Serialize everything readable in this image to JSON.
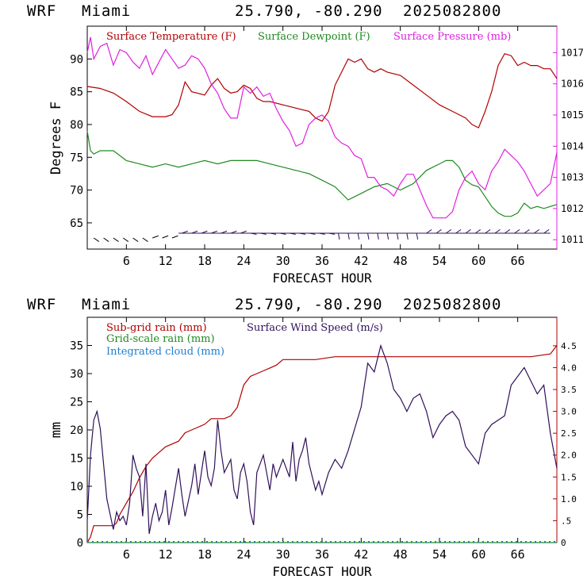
{
  "panel_top": {
    "header": {
      "model": "WRF",
      "location": "Miami",
      "coords": "25.790, -80.290",
      "run": "2025082800"
    },
    "xlabel": "FORECAST HOUR",
    "ylabel": "Degrees F",
    "x_ticks": [
      "6",
      "12",
      "18",
      "24",
      "30",
      "36",
      "42",
      "48",
      "54",
      "60",
      "66"
    ],
    "y_ticks": [
      "65",
      "70",
      "75",
      "80",
      "85",
      "90"
    ],
    "y2_ticks": [
      "1011",
      "1012",
      "1013",
      "1014",
      "1015",
      "1016",
      "1017"
    ],
    "legend": [
      {
        "label": "Surface Temperature (F)",
        "color": "#b00000"
      },
      {
        "label": "Surface Dewpoint (F)",
        "color": "#1f8a1f"
      },
      {
        "label": "Surface Pressure (mb)",
        "color": "#e020e0"
      }
    ]
  },
  "panel_bottom": {
    "header": {
      "model": "WRF",
      "location": "Miami",
      "coords": "25.790, -80.290",
      "run": "2025082800"
    },
    "xlabel": "FORECAST HOUR",
    "ylabel": "mm",
    "x_ticks": [
      "6",
      "12",
      "18",
      "24",
      "30",
      "36",
      "42",
      "48",
      "54",
      "60",
      "66"
    ],
    "y_ticks": [
      "0",
      "5",
      "10",
      "15",
      "20",
      "25",
      "30",
      "35"
    ],
    "y2_ticks": [
      "0",
      ".5",
      "1.0",
      "1.5",
      "2.0",
      "2.5",
      "3.0",
      "3.5",
      "4.0",
      "4.5"
    ],
    "legend": [
      {
        "label": "Sub-grid rain (mm)",
        "color": "#b00000"
      },
      {
        "label": "Grid-scale rain (mm)",
        "color": "#1f8a1f"
      },
      {
        "label": "Integrated cloud (mm)",
        "color": "#1e7fd0"
      },
      {
        "label": "Surface Wind Speed (m/s)",
        "color": "#30105a"
      }
    ]
  },
  "chart_data": [
    {
      "type": "line",
      "xlim": [
        0,
        72
      ],
      "ylim": [
        61,
        95
      ],
      "y2lim": [
        1010.7,
        1017.85
      ],
      "series": [
        {
          "name": "Surface Temperature (F)",
          "axis": "left",
          "color": "#b00000",
          "x": [
            0,
            2,
            4,
            6,
            8,
            10,
            12,
            13,
            14,
            15,
            16,
            18,
            19,
            20,
            21,
            22,
            23,
            24,
            25,
            26,
            27,
            28,
            30,
            32,
            34,
            35,
            36,
            37,
            38,
            40,
            41,
            42,
            43,
            44,
            45,
            46,
            48,
            50,
            52,
            54,
            56,
            58,
            59,
            60,
            61,
            62,
            63,
            64,
            65,
            66,
            67,
            68,
            69,
            70,
            71,
            72
          ],
          "y": [
            85.8,
            85.5,
            84.8,
            83.5,
            82,
            81.2,
            81.2,
            81.5,
            83,
            86.5,
            85,
            84.5,
            86,
            87,
            85.5,
            84.8,
            85,
            86,
            85.5,
            84,
            83.5,
            83.5,
            83,
            82.5,
            82,
            81,
            80.5,
            82,
            86,
            90,
            89.5,
            90,
            88.5,
            88,
            88.5,
            88,
            87.5,
            86,
            84.5,
            83,
            82,
            81,
            80,
            79.5,
            82,
            85,
            89,
            90.8,
            90.5,
            89,
            89.5,
            89,
            89,
            88.5,
            88.5,
            87
          ]
        },
        {
          "name": "Surface Dewpoint (F)",
          "axis": "left",
          "color": "#1f8a1f",
          "x": [
            0,
            0.5,
            1,
            2,
            4,
            6,
            8,
            10,
            12,
            14,
            16,
            18,
            20,
            22,
            24,
            26,
            28,
            30,
            32,
            34,
            36,
            38,
            40,
            42,
            44,
            46,
            48,
            50,
            52,
            54,
            55,
            56,
            57,
            58,
            59,
            60,
            61,
            62,
            63,
            64,
            65,
            66,
            67,
            68,
            69,
            70,
            71,
            72
          ],
          "y": [
            79,
            76,
            75.5,
            76,
            76,
            74.5,
            74,
            73.5,
            74,
            73.5,
            74,
            74.5,
            74,
            74.5,
            74.5,
            74.5,
            74,
            73.5,
            73,
            72.5,
            71.5,
            70.5,
            68.5,
            69.5,
            70.5,
            71,
            70,
            71,
            73,
            74,
            74.5,
            74.5,
            73.5,
            71.5,
            70.8,
            70.5,
            69,
            67.5,
            66.5,
            66,
            66,
            66.5,
            68,
            67.2,
            67.5,
            67.2,
            67.5,
            67.8
          ]
        },
        {
          "name": "Surface Pressure (mb)",
          "axis": "right",
          "color": "#e020e0",
          "x": [
            0,
            0.5,
            1,
            2,
            3,
            4,
            5,
            6,
            7,
            8,
            9,
            10,
            11,
            12,
            13,
            14,
            15,
            16,
            17,
            18,
            19,
            20,
            21,
            22,
            23,
            24,
            25,
            26,
            27,
            28,
            29,
            30,
            31,
            32,
            33,
            34,
            35,
            36,
            37,
            38,
            39,
            40,
            41,
            42,
            43,
            44,
            45,
            46,
            47,
            48,
            49,
            50,
            51,
            52,
            53,
            54,
            55,
            56,
            57,
            58,
            59,
            60,
            61,
            62,
            63,
            64,
            65,
            66,
            67,
            68,
            69,
            70,
            71,
            72
          ],
          "y": [
            1017,
            1017.5,
            1016.8,
            1017.2,
            1017.3,
            1016.6,
            1017.1,
            1017,
            1016.7,
            1016.5,
            1016.9,
            1016.3,
            1016.7,
            1017.1,
            1016.8,
            1016.5,
            1016.6,
            1016.9,
            1016.8,
            1016.5,
            1016,
            1015.7,
            1015.2,
            1014.9,
            1014.9,
            1015.9,
            1015.7,
            1015.9,
            1015.6,
            1015.7,
            1015.2,
            1014.8,
            1014.5,
            1014,
            1014.1,
            1014.7,
            1014.9,
            1015,
            1014.8,
            1014.3,
            1014.1,
            1014,
            1013.7,
            1013.6,
            1013,
            1013,
            1012.7,
            1012.6,
            1012.4,
            1012.8,
            1013.1,
            1013.1,
            1012.6,
            1012.1,
            1011.7,
            1011.7,
            1011.7,
            1011.9,
            1012.6,
            1013,
            1013.2,
            1012.8,
            1012.6,
            1013.2,
            1013.5,
            1013.9,
            1013.7,
            1013.5,
            1013.2,
            1012.8,
            1012.4,
            1012.6,
            1012.8,
            1013.8
          ]
        }
      ],
      "wind_barbs": "row of wind barbs along the bottom of the panel"
    },
    {
      "type": "line",
      "xlim": [
        0,
        72
      ],
      "ylim": [
        0,
        40
      ],
      "y2lim": [
        0,
        5.15
      ],
      "series": [
        {
          "name": "Sub-grid rain (mm)",
          "axis": "left",
          "color": "#b00000",
          "x": [
            0,
            0.5,
            1,
            4,
            4.5,
            5,
            6,
            7,
            8,
            9,
            10,
            11,
            12,
            14,
            15,
            16,
            17,
            18,
            19,
            20,
            21,
            22,
            23,
            24,
            25,
            26,
            27,
            28,
            29,
            30,
            31,
            32,
            35,
            38,
            40,
            44,
            48,
            52,
            56,
            60,
            64,
            68,
            71,
            72
          ],
          "y": [
            0,
            1,
            3,
            3,
            3.5,
            5,
            7,
            9,
            11.5,
            13.5,
            15,
            16,
            17,
            18,
            19.5,
            20,
            20.5,
            21,
            22,
            22,
            22,
            22.5,
            24,
            28,
            29.5,
            30,
            30.5,
            31,
            31.5,
            32.5,
            32.5,
            32.5,
            32.5,
            33,
            33,
            33,
            33,
            33,
            33,
            33,
            33,
            33,
            33.5,
            35
          ]
        },
        {
          "name": "Grid-scale rain (mm)",
          "axis": "left",
          "color": "#1f8a1f",
          "x": [
            0,
            72
          ],
          "y": [
            0,
            0
          ]
        },
        {
          "name": "Integrated cloud (mm)",
          "axis": "left",
          "color": "#1e7fd0",
          "x": [
            0,
            72
          ],
          "y": [
            0,
            0
          ]
        },
        {
          "name": "Surface Wind Speed (m/s)",
          "axis": "right",
          "color": "#30105a",
          "x": [
            0,
            0.5,
            1,
            1.5,
            2,
            3,
            4,
            4.5,
            5,
            5.5,
            6,
            6.5,
            7,
            7.5,
            8,
            8.5,
            9,
            9.5,
            10,
            10.5,
            11,
            11.5,
            12,
            12.5,
            13,
            14,
            14.5,
            15,
            16,
            16.5,
            17,
            18,
            18.5,
            19,
            19.5,
            20,
            20.5,
            21,
            22,
            22.5,
            23,
            23.5,
            24,
            24.5,
            25,
            25.5,
            26,
            27,
            28,
            28.5,
            29,
            30,
            31,
            31.5,
            32,
            32.5,
            33,
            33.5,
            34,
            35,
            35.5,
            36,
            37,
            38,
            39,
            40,
            41,
            42,
            43,
            44,
            45,
            46,
            47,
            48,
            49,
            50,
            51,
            52,
            53,
            54,
            55,
            56,
            57,
            58,
            59,
            60,
            61,
            62,
            63,
            64,
            65,
            66,
            67,
            68,
            69,
            70,
            71,
            72
          ],
          "y": [
            0.5,
            2.0,
            2.8,
            3.0,
            2.6,
            1.0,
            0.3,
            0.7,
            0.5,
            0.6,
            0.4,
            0.9,
            2.0,
            1.7,
            1.5,
            0.6,
            1.8,
            0.2,
            0.6,
            0.9,
            0.5,
            0.7,
            1.2,
            0.4,
            0.8,
            1.7,
            1.1,
            0.6,
            1.3,
            1.8,
            1.1,
            2.1,
            1.5,
            1.3,
            1.7,
            2.8,
            2.1,
            1.6,
            1.9,
            1.2,
            1.0,
            1.6,
            1.8,
            1.4,
            0.7,
            0.4,
            1.6,
            2.0,
            1.2,
            1.8,
            1.5,
            1.9,
            1.5,
            2.3,
            1.4,
            1.9,
            2.1,
            2.4,
            1.8,
            1.2,
            1.4,
            1.1,
            1.6,
            1.9,
            1.7,
            2.1,
            2.6,
            3.1,
            4.1,
            3.9,
            4.5,
            4.1,
            3.5,
            3.3,
            3.0,
            3.3,
            3.4,
            3.0,
            2.4,
            2.7,
            2.9,
            3.0,
            2.8,
            2.2,
            2.0,
            1.8,
            2.5,
            2.7,
            2.8,
            2.9,
            3.6,
            3.8,
            4.0,
            3.7,
            3.4,
            3.6,
            2.5,
            1.7
          ]
        }
      ]
    }
  ]
}
